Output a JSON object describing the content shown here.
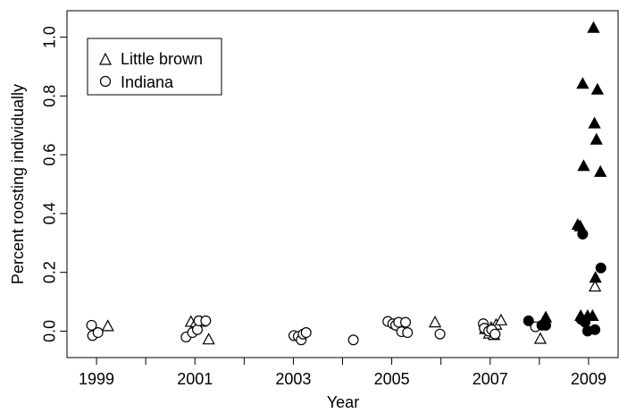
{
  "chart_data": {
    "type": "scatter",
    "title": "",
    "xlabel": "Year",
    "ylabel": "Percent roosting individually",
    "xlim": [
      1998.4,
      2009.6
    ],
    "ylim": [
      -0.09,
      1.09
    ],
    "x_ticks": [
      1999,
      2000,
      2001,
      2002,
      2003,
      2004,
      2005,
      2006,
      2007,
      2008,
      2009
    ],
    "x_tick_labels": [
      "1999",
      "",
      "2001",
      "",
      "2003",
      "",
      "2005",
      "",
      "2007",
      "",
      "2009"
    ],
    "y_ticks": [
      0.0,
      0.2,
      0.4,
      0.6,
      0.8,
      1.0
    ],
    "y_tick_labels": [
      "0.0",
      "0.2",
      "0.4",
      "0.6",
      "0.8",
      "1.0"
    ],
    "grid": false,
    "legend": {
      "placement": "top-left",
      "entries": [
        {
          "label": "Little brown",
          "marker": "open-triangle"
        },
        {
          "label": "Indiana",
          "marker": "open-circle"
        }
      ]
    },
    "series": [
      {
        "name": "Little brown",
        "marker": "open-triangle",
        "points": [
          [
            1999.23,
            0.015
          ],
          [
            2000.92,
            0.03
          ],
          [
            2001.02,
            0.028
          ],
          [
            2001.12,
            0.03
          ],
          [
            2001.28,
            -0.03
          ],
          [
            2005.88,
            0.028
          ],
          [
            2006.9,
            0.005
          ],
          [
            2006.98,
            -0.01
          ],
          [
            2007.02,
            0.01
          ],
          [
            2007.08,
            -0.015
          ],
          [
            2007.12,
            0.02
          ],
          [
            2007.22,
            0.035
          ],
          [
            2008.02,
            -0.028
          ],
          [
            2008.08,
            0.03
          ],
          [
            2009.13,
            0.15
          ]
        ]
      },
      {
        "name": "Little brown",
        "marker": "filled-triangle",
        "points": [
          [
            2008.13,
            0.045
          ],
          [
            2008.78,
            0.36
          ],
          [
            2008.83,
            0.355
          ],
          [
            2008.88,
            0.84
          ],
          [
            2008.9,
            0.56
          ],
          [
            2008.98,
            0.05
          ],
          [
            2009.08,
            0.05
          ],
          [
            2009.1,
            1.03
          ],
          [
            2009.12,
            0.705
          ],
          [
            2009.14,
            0.18
          ],
          [
            2009.16,
            0.65
          ],
          [
            2009.18,
            0.82
          ],
          [
            2009.24,
            0.54
          ],
          [
            2008.84,
            0.05
          ]
        ]
      },
      {
        "name": "Indiana",
        "marker": "open-circle",
        "points": [
          [
            1998.9,
            0.02
          ],
          [
            1998.92,
            -0.015
          ],
          [
            1999.03,
            -0.005
          ],
          [
            2000.82,
            -0.02
          ],
          [
            2000.95,
            -0.005
          ],
          [
            2001.05,
            0.005
          ],
          [
            2001.08,
            0.035
          ],
          [
            2001.22,
            0.035
          ],
          [
            2003.01,
            -0.015
          ],
          [
            2003.1,
            -0.018
          ],
          [
            2003.16,
            -0.03
          ],
          [
            2003.2,
            -0.01
          ],
          [
            2003.26,
            -0.005
          ],
          [
            2004.22,
            -0.03
          ],
          [
            2004.92,
            0.033
          ],
          [
            2005.02,
            0.025
          ],
          [
            2005.08,
            0.02
          ],
          [
            2005.14,
            0.03
          ],
          [
            2005.2,
            -0.002
          ],
          [
            2005.28,
            0.03
          ],
          [
            2005.32,
            -0.005
          ],
          [
            2005.98,
            -0.01
          ],
          [
            2006.86,
            0.025
          ],
          [
            2006.88,
            0.01
          ],
          [
            2006.97,
            0.0
          ],
          [
            2007.03,
            0.005
          ],
          [
            2007.1,
            -0.01
          ],
          [
            2007.92,
            0.015
          ]
        ]
      },
      {
        "name": "Indiana",
        "marker": "filled-circle",
        "points": [
          [
            2007.78,
            0.035
          ],
          [
            2008.05,
            0.02
          ],
          [
            2008.13,
            0.02
          ],
          [
            2008.88,
            0.33
          ],
          [
            2008.93,
            0.03
          ],
          [
            2008.98,
            0.0
          ],
          [
            2009.13,
            0.005
          ],
          [
            2009.25,
            0.215
          ],
          [
            2008.85,
            0.04
          ]
        ]
      }
    ]
  }
}
